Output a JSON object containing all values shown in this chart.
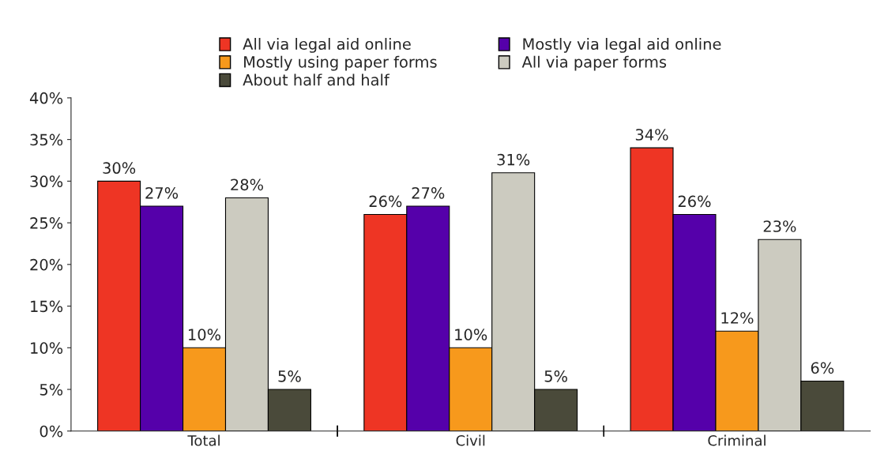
{
  "chart_data": {
    "type": "bar",
    "categories": [
      "Total",
      "Civil",
      "Criminal"
    ],
    "series": [
      {
        "name": "All via legal aid online",
        "color": "#ee3524",
        "values": [
          30,
          26,
          34
        ]
      },
      {
        "name": "Mostly via legal aid online",
        "color": "#5500aa",
        "values": [
          27,
          27,
          26
        ]
      },
      {
        "name": "Mostly using paper forms",
        "color": "#f7991c",
        "values": [
          10,
          10,
          12
        ]
      },
      {
        "name": "All via paper forms",
        "color": "#cccbc0",
        "values": [
          28,
          31,
          23
        ]
      },
      {
        "name": "About half and half",
        "color": "#4a4a3a",
        "values": [
          5,
          5,
          6
        ]
      }
    ],
    "ylim": [
      0,
      40
    ],
    "yticks": [
      {
        "value": 0,
        "label": "0%"
      },
      {
        "value": 5,
        "label": "5%"
      },
      {
        "value": 10,
        "label": "10%"
      },
      {
        "value": 15,
        "label": "15%"
      },
      {
        "value": 20,
        "label": "20%"
      },
      {
        "value": 25,
        "label": "25%"
      },
      {
        "value": 30,
        "label": "30%"
      },
      {
        "value": 35,
        "label": "35%"
      },
      {
        "value": 40,
        "label": "40%"
      }
    ],
    "value_labels": [
      [
        "30%",
        "26%",
        "34%"
      ],
      [
        "27%",
        "27%",
        "26%"
      ],
      [
        "10%",
        "10%",
        "12%"
      ],
      [
        "28%",
        "31%",
        "23%"
      ],
      [
        "5%",
        "5%",
        "6%"
      ]
    ],
    "grid": false,
    "legend": "top"
  }
}
